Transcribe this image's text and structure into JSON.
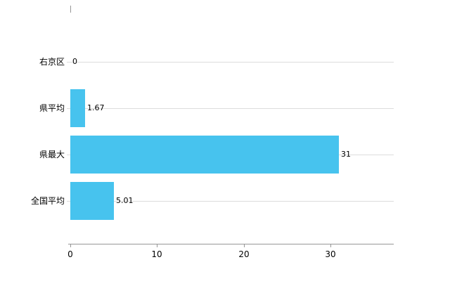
{
  "chart_data": {
    "type": "bar",
    "orientation": "horizontal",
    "title": "",
    "xlabel": "",
    "ylabel": "",
    "categories": [
      "右京区",
      "県平均",
      "県最大",
      "全国平均"
    ],
    "values": [
      0,
      1.67,
      31,
      5.01
    ],
    "value_labels": [
      "0",
      "1.67",
      "31",
      "5.01"
    ],
    "x_ticks": [
      0,
      10,
      20,
      30
    ],
    "x_tick_labels": [
      "0",
      "10",
      "20",
      "30"
    ],
    "xlim": [
      0,
      37.3
    ],
    "grid": "horizontal-per-category",
    "legend": "none",
    "colors": {
      "bar": "#47c3ee",
      "gridline": "#dcdcdc",
      "axis": "#969696",
      "text": "#000000",
      "background": "#ffffff"
    }
  }
}
